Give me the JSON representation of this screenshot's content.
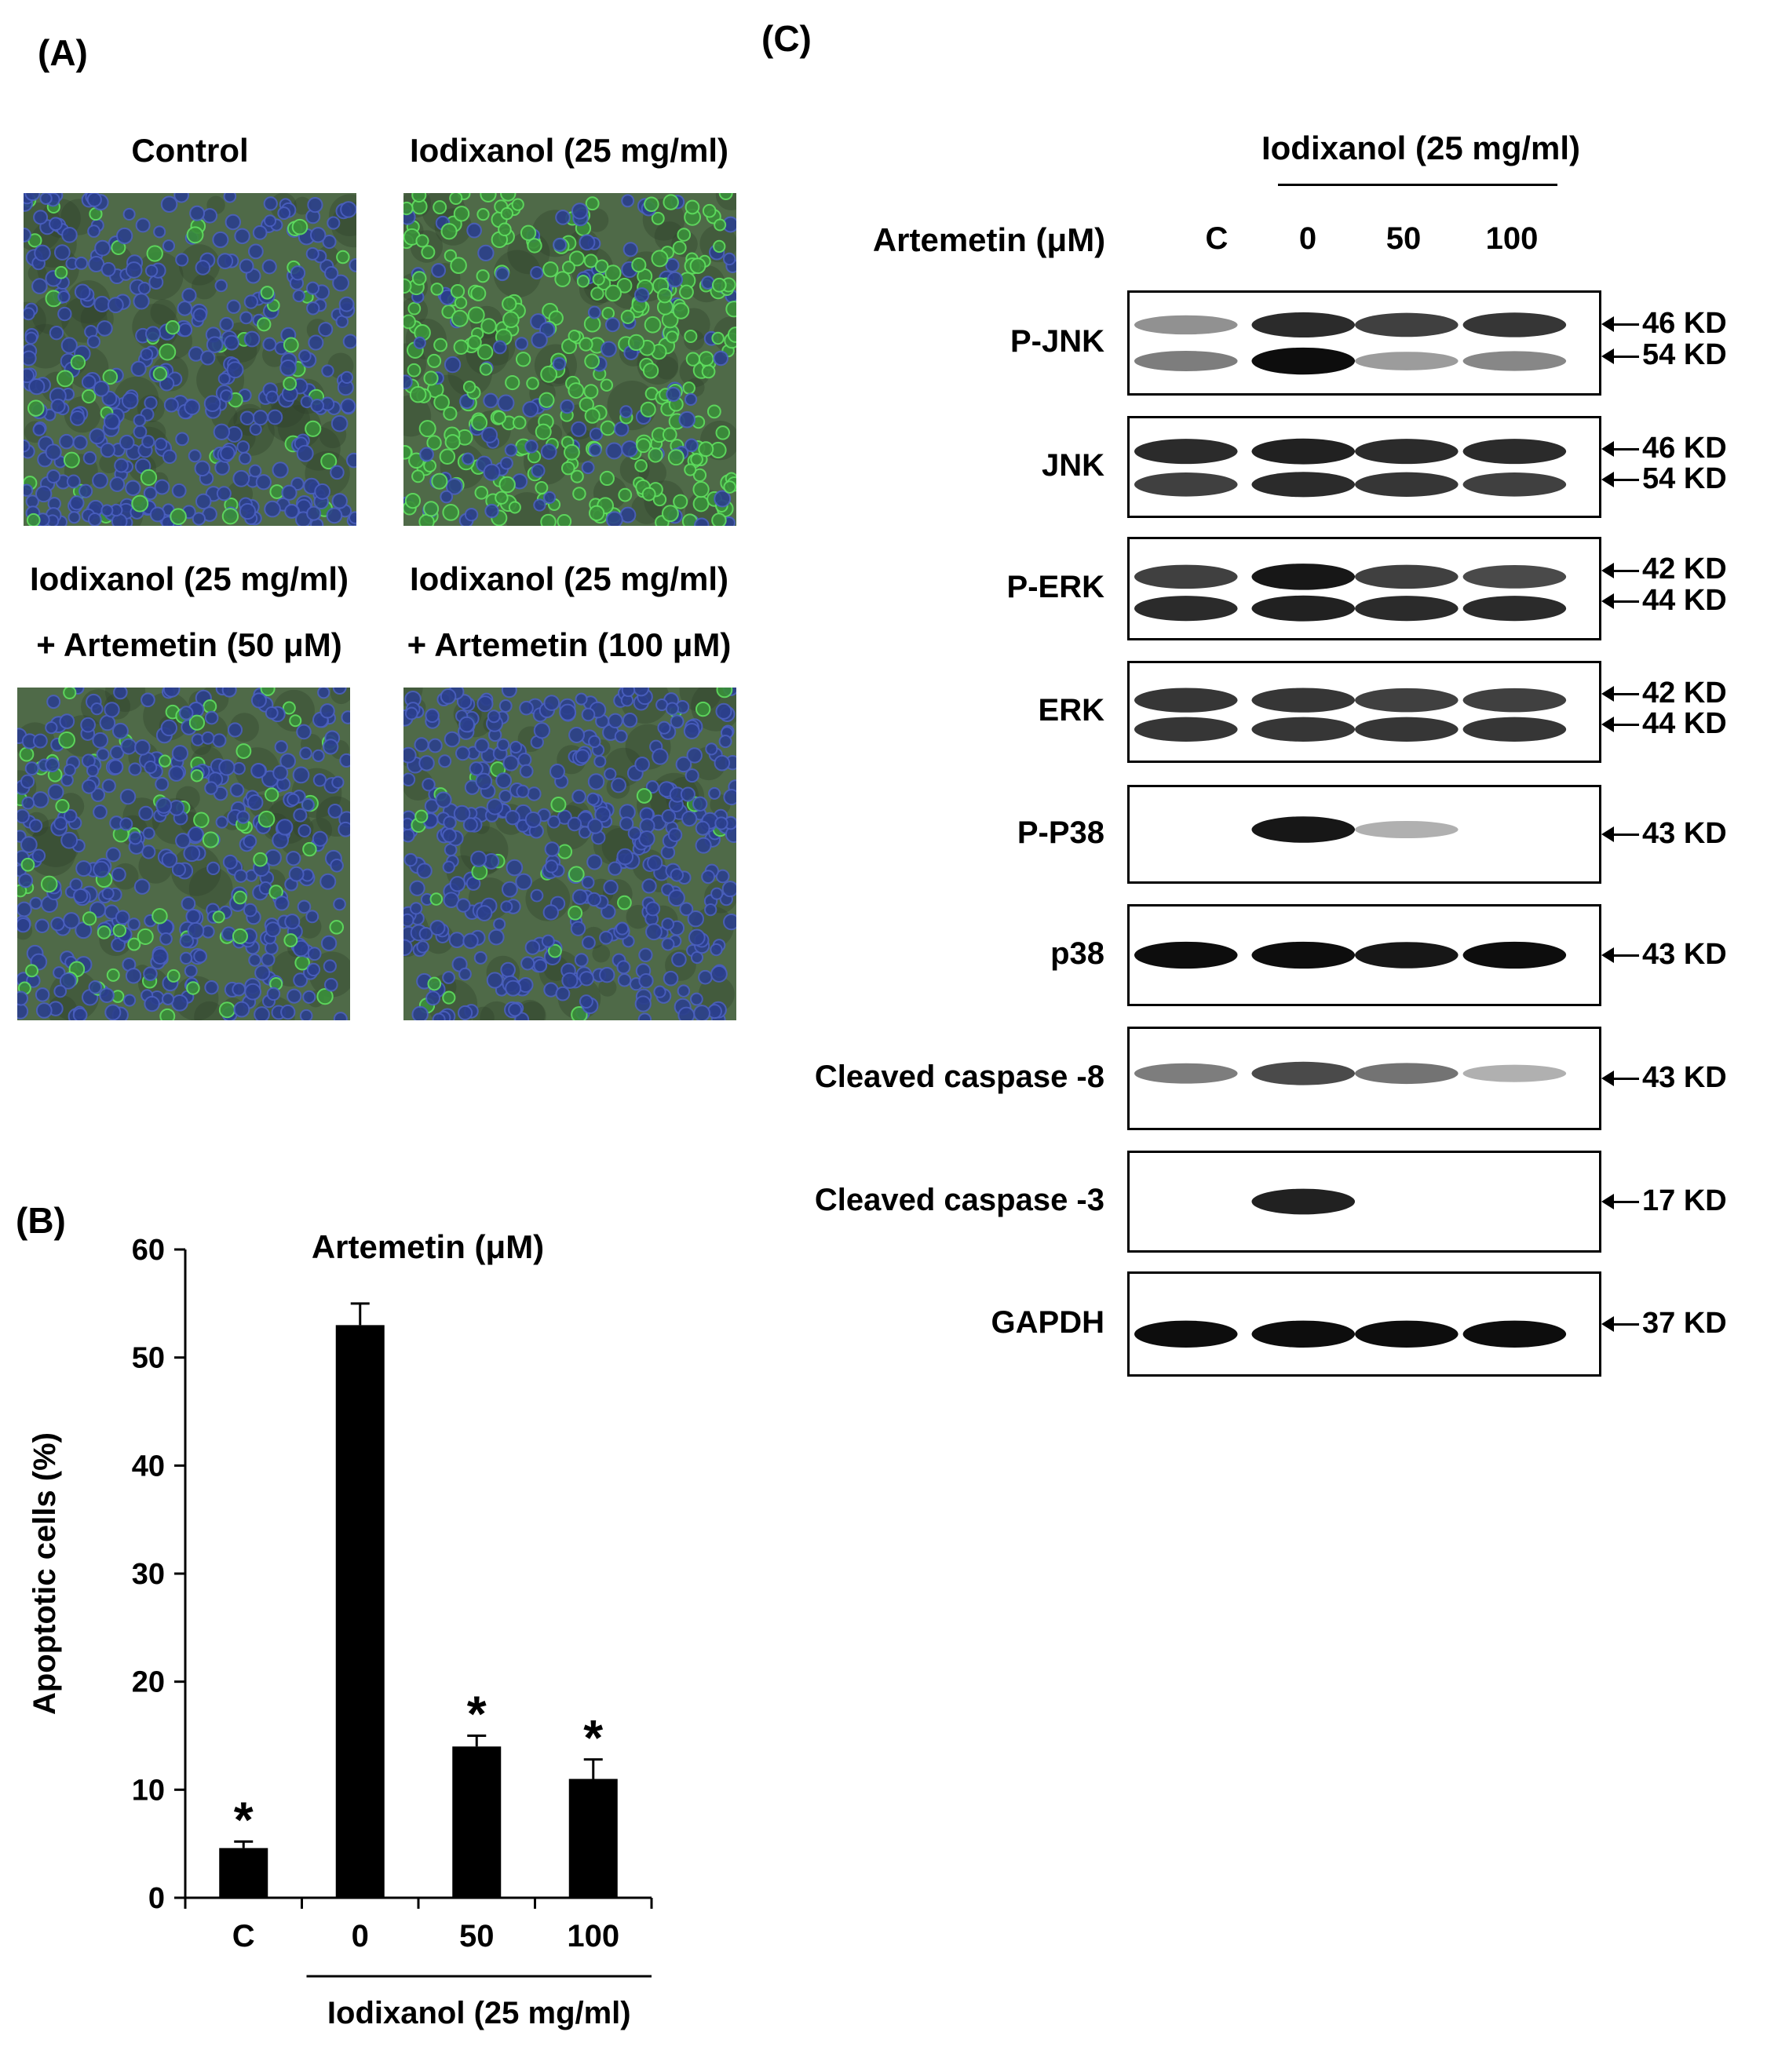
{
  "panel_a": {
    "label": "(A)",
    "images": [
      {
        "title": "Control",
        "subtitle": ""
      },
      {
        "title": "Iodixanol (25 mg/ml)",
        "subtitle": ""
      },
      {
        "title": "Iodixanol (25 mg/ml)",
        "subtitle": "+ Artemetin (50 μM)"
      },
      {
        "title": "Iodixanol (25 mg/ml)",
        "subtitle": "+ Artemetin (100 μM)"
      }
    ]
  },
  "panel_b": {
    "label": "(B)",
    "title": "Artemetin (μM)",
    "group_label": "Iodixanol (25 mg/ml)"
  },
  "chart_data": {
    "type": "bar",
    "title": "Artemetin (μM)",
    "categories": [
      "C",
      "0",
      "50",
      "100"
    ],
    "values": [
      4.6,
      53,
      14,
      11
    ],
    "errors": [
      0.6,
      2,
      1,
      1.8
    ],
    "significance": [
      "*",
      "",
      "*",
      "*"
    ],
    "xlabel": "Iodixanol (25 mg/ml)",
    "ylabel": "Apoptotic cells (%)",
    "ylim": [
      0,
      60
    ],
    "yticks": [
      0,
      10,
      20,
      30,
      40,
      50,
      60
    ],
    "color": "#000000"
  },
  "panel_c": {
    "label": "(C)",
    "treatment_label": "Iodixanol (25 mg/ml)",
    "lane_row_label": "Artemetin (μM)",
    "lanes": [
      "C",
      "0",
      "50",
      "100"
    ],
    "blots": [
      {
        "protein": "P-JNK",
        "markers": [
          "46 KD",
          "54 KD"
        ]
      },
      {
        "protein": "JNK",
        "markers": [
          "46 KD",
          "54 KD"
        ]
      },
      {
        "protein": "P-ERK",
        "markers": [
          "42 KD",
          "44 KD"
        ]
      },
      {
        "protein": "ERK",
        "markers": [
          "42 KD",
          "44 KD"
        ]
      },
      {
        "protein": "P-P38",
        "markers": [
          "43 KD"
        ]
      },
      {
        "protein": "p38",
        "markers": [
          "43 KD"
        ]
      },
      {
        "protein": "Cleaved caspase -8",
        "markers": [
          "43 KD"
        ]
      },
      {
        "protein": "Cleaved caspase -3",
        "markers": [
          "17 KD"
        ]
      },
      {
        "protein": "GAPDH",
        "markers": [
          "37 KD"
        ]
      }
    ]
  }
}
